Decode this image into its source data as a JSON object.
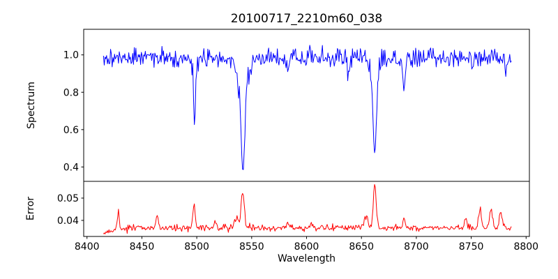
{
  "figure": {
    "title": "20100717_2210m60_038",
    "background": "#ffffff",
    "frame_color": "#000000"
  },
  "axes": {
    "xlabel": "Wavelength",
    "xlim": [
      8397,
      8803
    ],
    "xticks": [
      8400,
      8450,
      8500,
      8550,
      8600,
      8650,
      8700,
      8750,
      8800
    ],
    "spectrum": {
      "ylabel": "Spectrum",
      "ylim": [
        0.323,
        1.137
      ],
      "yticks": [
        {
          "value": 1.0,
          "label": "1.0"
        },
        {
          "value": 0.8,
          "label": "0.8"
        },
        {
          "value": 0.6,
          "label": "0.6"
        },
        {
          "value": 0.4,
          "label": "0.4"
        }
      ]
    },
    "error": {
      "ylabel": "Error",
      "ylim": [
        0.0328,
        0.0575
      ],
      "yticks": [
        {
          "value": 0.05,
          "label": "0.05"
        },
        {
          "value": 0.04,
          "label": "0.04"
        }
      ]
    }
  },
  "chart_data": [
    {
      "type": "line",
      "name": "spectrum",
      "color": "#0000ff",
      "line_width": 1,
      "x_start": 8415,
      "x_end": 8787,
      "x_step": 0.72,
      "baseline": 0.985,
      "noise_sigma": 0.026,
      "seed": 20100717,
      "absorption_lines": [
        {
          "center": 8498.0,
          "depth": 0.34,
          "sigma": 0.8
        },
        {
          "center": 8498.0,
          "depth": 0.05,
          "sigma": 2.0
        },
        {
          "center": 8542.1,
          "depth": 0.42,
          "sigma": 1.6
        },
        {
          "center": 8542.1,
          "depth": 0.18,
          "sigma": 4.5
        },
        {
          "center": 8662.1,
          "depth": 0.38,
          "sigma": 1.5
        },
        {
          "center": 8662.1,
          "depth": 0.125,
          "sigma": 3.5
        },
        {
          "center": 8688.6,
          "depth": 0.17,
          "sigma": 1.0
        },
        {
          "center": 8583.0,
          "depth": 0.09,
          "sigma": 0.9
        },
        {
          "center": 8638.0,
          "depth": 0.09,
          "sigma": 0.8
        },
        {
          "center": 8751.0,
          "depth": 0.07,
          "sigma": 0.9
        },
        {
          "center": 8782.0,
          "depth": 0.08,
          "sigma": 0.8
        }
      ]
    },
    {
      "type": "line",
      "name": "error",
      "color": "#ff0000",
      "line_width": 1,
      "x_start": 8415,
      "x_end": 8787,
      "x_step": 0.72,
      "baseline": 0.0366,
      "noise_sigma": 0.0007,
      "seed": 38,
      "start_dip": {
        "amount": 0.003,
        "scale": 7
      },
      "peaks": [
        {
          "center": 8428.5,
          "height": 0.007,
          "sigma": 1.0
        },
        {
          "center": 8464.0,
          "height": 0.006,
          "sigma": 1.0
        },
        {
          "center": 8497.5,
          "height": 0.01,
          "sigma": 1.2
        },
        {
          "center": 8517.0,
          "height": 0.0036,
          "sigma": 1.2
        },
        {
          "center": 8536.0,
          "height": 0.004,
          "sigma": 1.8
        },
        {
          "center": 8541.8,
          "height": 0.016,
          "sigma": 1.4
        },
        {
          "center": 8583.0,
          "height": 0.0028,
          "sigma": 1.0
        },
        {
          "center": 8605.0,
          "height": 0.0022,
          "sigma": 1.0
        },
        {
          "center": 8654.0,
          "height": 0.005,
          "sigma": 1.8
        },
        {
          "center": 8662.1,
          "height": 0.019,
          "sigma": 1.4
        },
        {
          "center": 8688.6,
          "height": 0.0035,
          "sigma": 1.1
        },
        {
          "center": 8745.0,
          "height": 0.0042,
          "sigma": 1.1
        },
        {
          "center": 8758.0,
          "height": 0.0085,
          "sigma": 1.2
        },
        {
          "center": 8768.0,
          "height": 0.0085,
          "sigma": 1.2
        },
        {
          "center": 8777.0,
          "height": 0.0075,
          "sigma": 1.2
        }
      ]
    }
  ]
}
